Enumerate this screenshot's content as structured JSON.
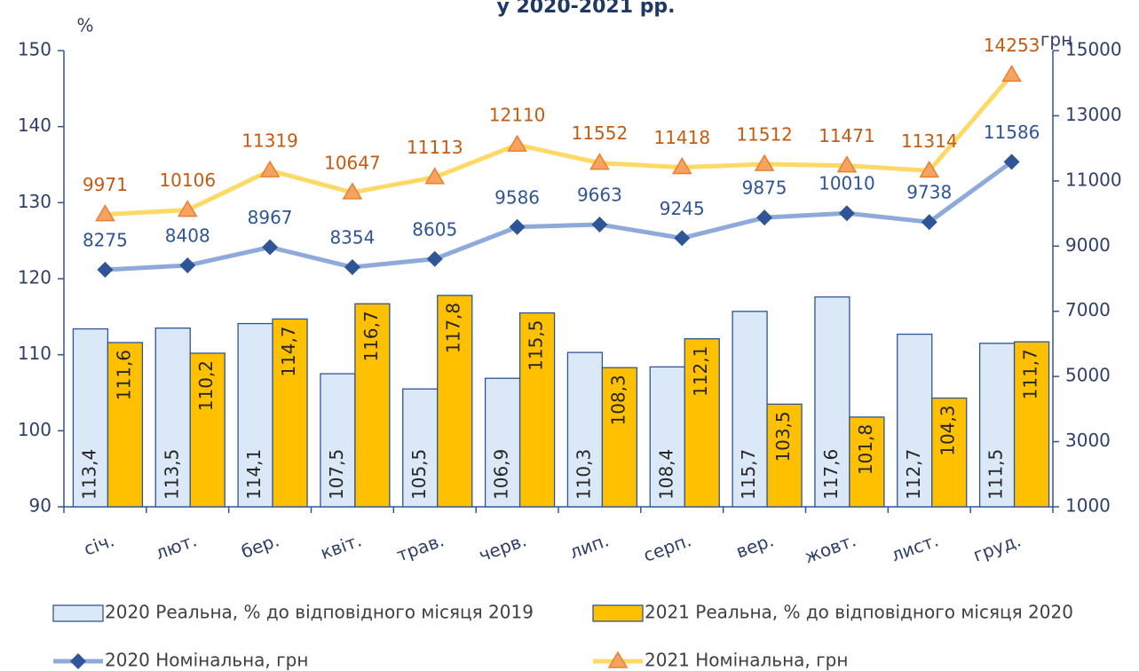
{
  "chart_data": {
    "type": "combo",
    "title": "у 2020-2021 рр.",
    "y_label": "%",
    "y2_label": "грн",
    "categories": [
      "січ.",
      "лют.",
      "бер.",
      "квіт.",
      "трав.",
      "черв.",
      "лип.",
      "серп.",
      "вер.",
      "жовт.",
      "лист.",
      "груд."
    ],
    "ylim": [
      90,
      150
    ],
    "yticks": [
      90,
      100,
      110,
      120,
      130,
      140,
      150
    ],
    "y2lim": [
      1000,
      15000
    ],
    "y2ticks": [
      1000,
      3000,
      5000,
      7000,
      9000,
      11000,
      13000,
      15000
    ],
    "series": [
      {
        "name": "2020 Реальна, % до відповідного місяця 2019",
        "type": "bar",
        "color": "#dae8f7",
        "values": [
          113.4,
          113.5,
          114.1,
          107.5,
          105.5,
          106.9,
          110.3,
          108.4,
          115.7,
          117.6,
          112.7,
          111.5
        ],
        "value_labels": [
          "113,4",
          "113,5",
          "114,1",
          "107,5",
          "105,5",
          "106,9",
          "110,3",
          "108,4",
          "115,7",
          "117,6",
          "112,7",
          "111,5"
        ]
      },
      {
        "name": "2021 Реальна, % до відповідного місяця 2020",
        "type": "bar",
        "color": "#ffc000",
        "values": [
          111.6,
          110.2,
          114.7,
          116.7,
          117.8,
          115.5,
          108.3,
          112.1,
          103.5,
          101.8,
          104.3,
          111.7
        ],
        "value_labels": [
          "111,6",
          "110,2",
          "114,7",
          "116,7",
          "117,8",
          "115,5",
          "108,3",
          "112,1",
          "103,5",
          "101,8",
          "104,3",
          "111,7"
        ]
      },
      {
        "name": "2020 Номінальна, грн",
        "type": "line",
        "axis": "y2",
        "color": "#8eaadb",
        "marker_color": "#2f5597",
        "marker": "diamond",
        "label_color": "#2f5597",
        "values": [
          8275,
          8408,
          8967,
          8354,
          8605,
          9586,
          9663,
          9245,
          9875,
          10010,
          9738,
          11586
        ]
      },
      {
        "name": "2021 Номінальна, грн",
        "type": "line",
        "axis": "y2",
        "color": "#ffd966",
        "marker_color": "#f4a460",
        "marker": "triangle",
        "label_color": "#c55a11",
        "values": [
          9971,
          10106,
          11319,
          10647,
          11113,
          12110,
          11552,
          11418,
          11512,
          11471,
          11314,
          14253
        ]
      }
    ]
  }
}
